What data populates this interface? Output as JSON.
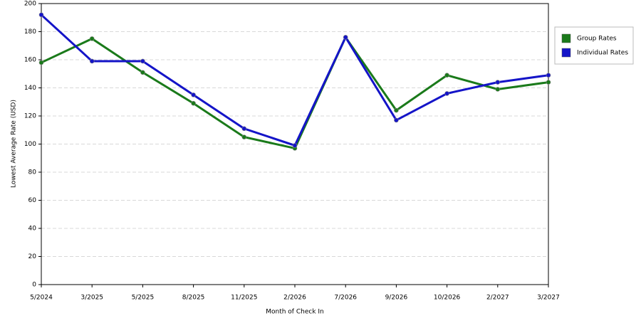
{
  "chart_data": {
    "type": "line",
    "x_label": "Month of Check In",
    "y_label": "Lowest Average Rate (USD)",
    "categories": [
      "5/2024",
      "3/2025",
      "5/2025",
      "8/2025",
      "11/2025",
      "2/2026",
      "7/2026",
      "9/2026",
      "10/2026",
      "2/2027",
      "3/2027"
    ],
    "series": [
      {
        "name": "Group Rates",
        "color": "#1a7a1a",
        "values": [
          158,
          175,
          151,
          129,
          105,
          97,
          176,
          124,
          149,
          139,
          144
        ]
      },
      {
        "name": "Individual Rates",
        "color": "#1414c8",
        "values": [
          192,
          159,
          159,
          135,
          111,
          99,
          176,
          117,
          136,
          144,
          149
        ]
      }
    ],
    "ylim": [
      0,
      200
    ],
    "yticks": [
      0,
      20,
      40,
      60,
      80,
      100,
      120,
      140,
      160,
      180,
      200
    ],
    "grid": true,
    "legend": "right"
  }
}
